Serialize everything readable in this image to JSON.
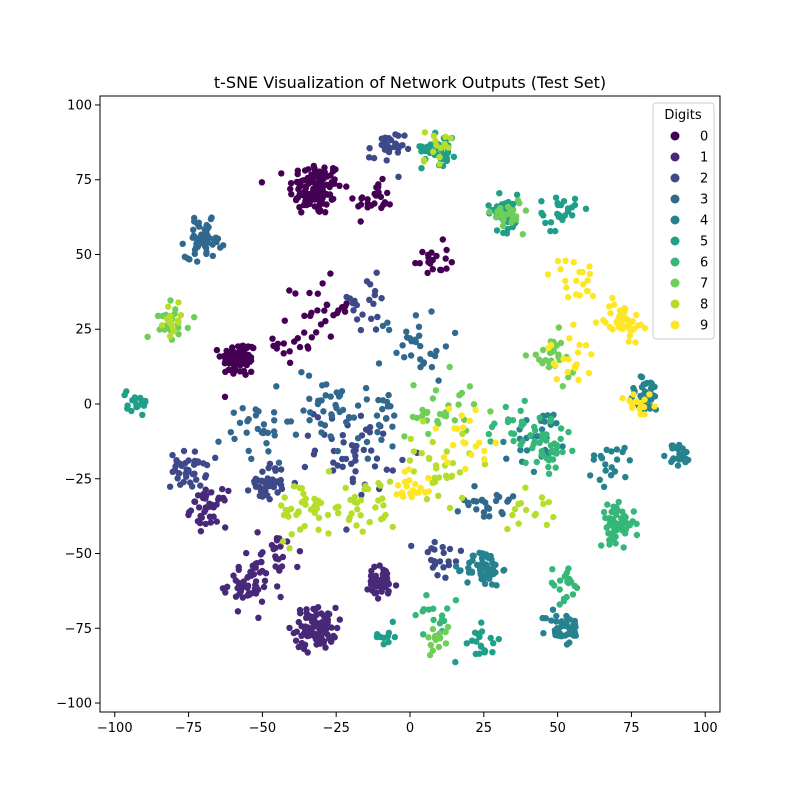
{
  "chart_data": {
    "type": "scatter",
    "title": "t-SNE Visualization of Network Outputs (Test Set)",
    "xlabel": "",
    "ylabel": "",
    "xlim": [
      -105,
      105
    ],
    "ylim": [
      -103,
      103
    ],
    "xticks": [
      -100,
      -75,
      -50,
      -25,
      0,
      25,
      50,
      75,
      100
    ],
    "yticks": [
      -100,
      -75,
      -50,
      -25,
      0,
      25,
      50,
      75,
      100
    ],
    "xtick_labels": [
      "−100",
      "−75",
      "−50",
      "−25",
      "0",
      "25",
      "50",
      "75",
      "100"
    ],
    "ytick_labels": [
      "−100",
      "−75",
      "−50",
      "−25",
      "0",
      "25",
      "50",
      "75",
      "100"
    ],
    "grid": false,
    "colormap": "viridis",
    "legend": {
      "title": "Digits",
      "placement": "top-right",
      "labels": [
        "0",
        "1",
        "2",
        "3",
        "4",
        "5",
        "6",
        "7",
        "8",
        "9"
      ]
    },
    "series": [
      {
        "name": "0",
        "color": "#440154",
        "clusters": [
          {
            "x": -32,
            "y": 72,
            "sd": 4.5,
            "n": 120
          },
          {
            "x": -58,
            "y": 15,
            "sd": 3,
            "n": 80
          },
          {
            "x": -12,
            "y": 68,
            "sd": 3,
            "n": 25
          },
          {
            "x": -30,
            "y": 32,
            "sd": 5,
            "n": 25
          },
          {
            "x": 7,
            "y": 48,
            "sd": 3,
            "n": 20
          },
          {
            "x": -38,
            "y": 20,
            "sd": 4,
            "n": 15
          }
        ]
      },
      {
        "name": "1",
        "color": "#482878",
        "clusters": [
          {
            "x": -32,
            "y": -75,
            "sd": 3.5,
            "n": 90
          },
          {
            "x": -55,
            "y": -60,
            "sd": 4,
            "n": 50
          },
          {
            "x": -68,
            "y": -35,
            "sd": 3,
            "n": 40
          },
          {
            "x": -10,
            "y": -60,
            "sd": 3,
            "n": 40
          },
          {
            "x": -45,
            "y": -50,
            "sd": 4,
            "n": 25
          }
        ]
      },
      {
        "name": "2",
        "color": "#3e4989",
        "clusters": [
          {
            "x": -75,
            "y": -22,
            "sd": 3,
            "n": 40
          },
          {
            "x": -48,
            "y": -26,
            "sd": 3,
            "n": 40
          },
          {
            "x": -18,
            "y": -15,
            "sd": 7,
            "n": 50
          },
          {
            "x": -8,
            "y": 85,
            "sd": 3,
            "n": 30
          },
          {
            "x": 10,
            "y": -52,
            "sd": 4,
            "n": 20
          },
          {
            "x": -15,
            "y": 33,
            "sd": 5,
            "n": 20
          }
        ]
      },
      {
        "name": "3",
        "color": "#31688e",
        "clusters": [
          {
            "x": -70,
            "y": 55,
            "sd": 3,
            "n": 60
          },
          {
            "x": -52,
            "y": -10,
            "sd": 6,
            "n": 30
          },
          {
            "x": -30,
            "y": 0,
            "sd": 6,
            "n": 30
          },
          {
            "x": 2,
            "y": 20,
            "sd": 6,
            "n": 30
          },
          {
            "x": 26,
            "y": -32,
            "sd": 4,
            "n": 25
          },
          {
            "x": -10,
            "y": -5,
            "sd": 6,
            "n": 25
          }
        ]
      },
      {
        "name": "4",
        "color": "#26828e",
        "clusters": [
          {
            "x": 25,
            "y": -55,
            "sd": 3,
            "n": 60
          },
          {
            "x": 52,
            "y": -75,
            "sd": 3,
            "n": 40
          },
          {
            "x": 80,
            "y": 3,
            "sd": 3,
            "n": 40
          },
          {
            "x": 91,
            "y": -17,
            "sd": 2,
            "n": 25
          },
          {
            "x": 45,
            "y": -12,
            "sd": 5,
            "n": 25
          },
          {
            "x": 68,
            "y": -20,
            "sd": 4,
            "n": 20
          }
        ]
      },
      {
        "name": "5",
        "color": "#1f9e89",
        "clusters": [
          {
            "x": 10,
            "y": 86,
            "sd": 3,
            "n": 40
          },
          {
            "x": 32,
            "y": 64,
            "sd": 3,
            "n": 40
          },
          {
            "x": 50,
            "y": 64,
            "sd": 3,
            "n": 25
          },
          {
            "x": -92,
            "y": 1,
            "sd": 2,
            "n": 20
          },
          {
            "x": 25,
            "y": -80,
            "sd": 3,
            "n": 20
          },
          {
            "x": -8,
            "y": -78,
            "sd": 2,
            "n": 10
          }
        ]
      },
      {
        "name": "6",
        "color": "#35b779",
        "clusters": [
          {
            "x": 70,
            "y": -40,
            "sd": 3,
            "n": 60
          },
          {
            "x": 47,
            "y": -15,
            "sd": 4,
            "n": 40
          },
          {
            "x": 52,
            "y": -60,
            "sd": 3,
            "n": 20
          },
          {
            "x": 35,
            "y": -8,
            "sd": 5,
            "n": 20
          },
          {
            "x": 10,
            "y": -70,
            "sd": 4,
            "n": 15
          }
        ]
      },
      {
        "name": "7",
        "color": "#6ece58",
        "clusters": [
          {
            "x": 33,
            "y": 64,
            "sd": 2.5,
            "n": 25
          },
          {
            "x": 48,
            "y": 15,
            "sd": 4,
            "n": 25
          },
          {
            "x": -80,
            "y": 28,
            "sd": 3,
            "n": 20
          },
          {
            "x": 10,
            "y": -2,
            "sd": 6,
            "n": 30
          },
          {
            "x": 10,
            "y": -80,
            "sd": 3,
            "n": 15
          }
        ]
      },
      {
        "name": "8",
        "color": "#b5de2b",
        "clusters": [
          {
            "x": -35,
            "y": -35,
            "sd": 5,
            "n": 40
          },
          {
            "x": -15,
            "y": -35,
            "sd": 5,
            "n": 30
          },
          {
            "x": 10,
            "y": -20,
            "sd": 6,
            "n": 30
          },
          {
            "x": 8,
            "y": 86,
            "sd": 3,
            "n": 15
          },
          {
            "x": 40,
            "y": -35,
            "sd": 4,
            "n": 15
          },
          {
            "x": -80,
            "y": 28,
            "sd": 2.5,
            "n": 15
          }
        ]
      },
      {
        "name": "9",
        "color": "#fde725",
        "clusters": [
          {
            "x": 72,
            "y": 28,
            "sd": 3,
            "n": 50
          },
          {
            "x": 55,
            "y": 42,
            "sd": 4,
            "n": 20
          },
          {
            "x": 55,
            "y": 15,
            "sd": 4,
            "n": 20
          },
          {
            "x": 18,
            "y": -10,
            "sd": 5,
            "n": 20
          },
          {
            "x": 0,
            "y": -28,
            "sd": 4,
            "n": 20
          },
          {
            "x": 78,
            "y": 0,
            "sd": 3,
            "n": 15
          }
        ]
      }
    ]
  }
}
